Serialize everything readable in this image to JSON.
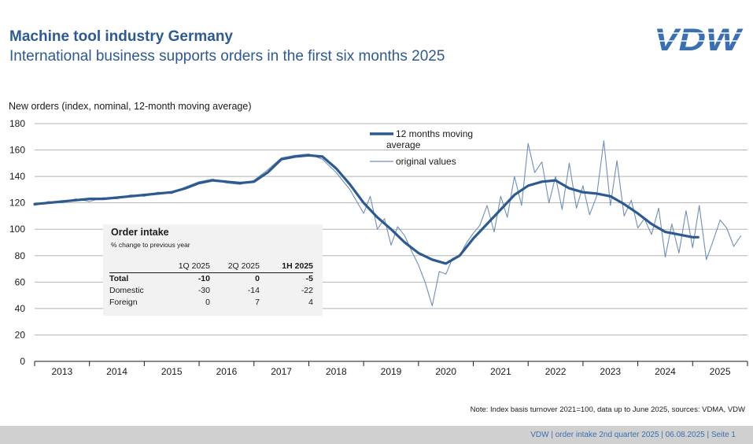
{
  "header": {
    "title": "Machine tool industry Germany",
    "subtitle": "International business supports orders in the first six months 2025",
    "logo_text": "VDW"
  },
  "footer": {
    "text": "VDW  | order intake 2nd quarter 2025 |   06.08.2025     |  Seite  1"
  },
  "colors": {
    "series_main": "#2e5a8f",
    "series_original": "#6f8fb8",
    "title": "#2e5a8f",
    "inset_bg": "#f2f2f2",
    "footer_bg": "#d0d0d0"
  },
  "inset": {
    "title": "Order intake",
    "subtitle": "% change to previous year",
    "columns": [
      "1Q 2025",
      "2Q 2025",
      "1H 2025"
    ],
    "rows": [
      {
        "label": "Total",
        "values": [
          "-10",
          "0",
          "-5"
        ]
      },
      {
        "label": "Domestic",
        "values": [
          "-30",
          "-14",
          "-22"
        ]
      },
      {
        "label": "Foreign",
        "values": [
          "0",
          "7",
          "4"
        ]
      }
    ]
  },
  "chart_data": {
    "type": "line",
    "ylabel": "New orders (index, nominal, 12-month moving average)",
    "xlabel": "",
    "ylim": [
      0,
      180
    ],
    "yticks": [
      0,
      20,
      40,
      60,
      80,
      100,
      120,
      140,
      160,
      180
    ],
    "xlim": [
      2013,
      2026
    ],
    "years": [
      "2013",
      "2014",
      "2015",
      "2016",
      "2017",
      "2018",
      "2019",
      "2020",
      "2021",
      "2022",
      "2023",
      "2024",
      "2025"
    ],
    "note": "Note: Index basis turnover 2021=100, data up to June 2025, sources: VDMA, VDW",
    "legend": [
      "12 months moving average",
      "original values"
    ],
    "legend_position": "top-right",
    "series": [
      {
        "name": "12 months moving average",
        "points": [
          [
            2013.0,
            119
          ],
          [
            2013.25,
            120
          ],
          [
            2013.5,
            121
          ],
          [
            2013.75,
            122
          ],
          [
            2014.0,
            123
          ],
          [
            2014.25,
            123
          ],
          [
            2014.5,
            124
          ],
          [
            2014.75,
            125
          ],
          [
            2015.0,
            126
          ],
          [
            2015.25,
            127
          ],
          [
            2015.5,
            128
          ],
          [
            2015.75,
            131
          ],
          [
            2016.0,
            135
          ],
          [
            2016.25,
            137
          ],
          [
            2016.5,
            136
          ],
          [
            2016.75,
            135
          ],
          [
            2017.0,
            136
          ],
          [
            2017.25,
            143
          ],
          [
            2017.5,
            153
          ],
          [
            2017.75,
            155
          ],
          [
            2018.0,
            156
          ],
          [
            2018.25,
            155
          ],
          [
            2018.5,
            146
          ],
          [
            2018.75,
            134
          ],
          [
            2019.0,
            120
          ],
          [
            2019.25,
            109
          ],
          [
            2019.5,
            100
          ],
          [
            2019.75,
            90
          ],
          [
            2020.0,
            82
          ],
          [
            2020.25,
            77
          ],
          [
            2020.5,
            74
          ],
          [
            2020.75,
            80
          ],
          [
            2021.0,
            93
          ],
          [
            2021.25,
            104
          ],
          [
            2021.5,
            115
          ],
          [
            2021.75,
            126
          ],
          [
            2022.0,
            133
          ],
          [
            2022.25,
            136
          ],
          [
            2022.5,
            137
          ],
          [
            2022.75,
            131
          ],
          [
            2023.0,
            128
          ],
          [
            2023.25,
            127
          ],
          [
            2023.5,
            125
          ],
          [
            2023.75,
            119
          ],
          [
            2024.0,
            112
          ],
          [
            2024.25,
            104
          ],
          [
            2024.5,
            98
          ],
          [
            2024.75,
            96
          ],
          [
            2025.0,
            94
          ],
          [
            2025.1,
            94
          ]
        ]
      },
      {
        "name": "original values",
        "points": [
          [
            2013.0,
            118
          ],
          [
            2013.25,
            121
          ],
          [
            2013.5,
            120
          ],
          [
            2013.75,
            123
          ],
          [
            2014.0,
            121
          ],
          [
            2014.25,
            124
          ],
          [
            2014.5,
            123
          ],
          [
            2014.75,
            126
          ],
          [
            2015.0,
            125
          ],
          [
            2015.25,
            128
          ],
          [
            2015.5,
            127
          ],
          [
            2015.75,
            132
          ],
          [
            2016.0,
            136
          ],
          [
            2016.25,
            138
          ],
          [
            2016.5,
            135
          ],
          [
            2016.75,
            134
          ],
          [
            2017.0,
            137
          ],
          [
            2017.25,
            145
          ],
          [
            2017.5,
            154
          ],
          [
            2017.75,
            156
          ],
          [
            2018.0,
            157
          ],
          [
            2018.25,
            153
          ],
          [
            2018.5,
            143
          ],
          [
            2018.75,
            130
          ],
          [
            2019.0,
            112
          ],
          [
            2019.12,
            125
          ],
          [
            2019.25,
            100
          ],
          [
            2019.38,
            108
          ],
          [
            2019.5,
            88
          ],
          [
            2019.62,
            102
          ],
          [
            2019.75,
            95
          ],
          [
            2019.88,
            83
          ],
          [
            2020.0,
            73
          ],
          [
            2020.12,
            60
          ],
          [
            2020.25,
            42
          ],
          [
            2020.38,
            68
          ],
          [
            2020.5,
            66
          ],
          [
            2020.62,
            78
          ],
          [
            2020.75,
            80
          ],
          [
            2020.88,
            90
          ],
          [
            2021.0,
            97
          ],
          [
            2021.12,
            103
          ],
          [
            2021.25,
            118
          ],
          [
            2021.38,
            98
          ],
          [
            2021.5,
            125
          ],
          [
            2021.62,
            109
          ],
          [
            2021.75,
            140
          ],
          [
            2021.88,
            118
          ],
          [
            2022.0,
            165
          ],
          [
            2022.12,
            143
          ],
          [
            2022.25,
            151
          ],
          [
            2022.38,
            120
          ],
          [
            2022.5,
            140
          ],
          [
            2022.62,
            115
          ],
          [
            2022.75,
            150
          ],
          [
            2022.88,
            116
          ],
          [
            2023.0,
            133
          ],
          [
            2023.12,
            111
          ],
          [
            2023.25,
            125
          ],
          [
            2023.38,
            167
          ],
          [
            2023.5,
            118
          ],
          [
            2023.62,
            152
          ],
          [
            2023.75,
            110
          ],
          [
            2023.88,
            122
          ],
          [
            2024.0,
            101
          ],
          [
            2024.12,
            108
          ],
          [
            2024.25,
            96
          ],
          [
            2024.38,
            116
          ],
          [
            2024.5,
            79
          ],
          [
            2024.62,
            104
          ],
          [
            2024.75,
            82
          ],
          [
            2024.88,
            114
          ],
          [
            2025.0,
            86
          ],
          [
            2025.12,
            118
          ],
          [
            2025.25,
            77
          ],
          [
            2025.38,
            92
          ],
          [
            2025.5,
            107
          ],
          [
            2025.62,
            101
          ],
          [
            2025.75,
            87
          ],
          [
            2025.88,
            95
          ]
        ]
      }
    ]
  }
}
